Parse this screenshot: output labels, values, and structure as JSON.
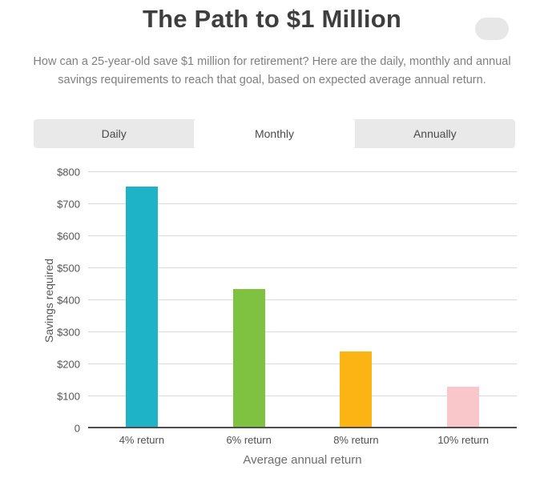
{
  "header": {
    "title": "The Path to $1 Million",
    "subtitle": "How can a 25-year-old save $1 million for retirement? Here are the daily, monthly and annual savings requirements to reach that goal, based on expected average annual return."
  },
  "tabs": {
    "items": [
      {
        "label": "Daily",
        "active": false
      },
      {
        "label": "Monthly",
        "active": true
      },
      {
        "label": "Annually",
        "active": false
      }
    ]
  },
  "chart_data": {
    "type": "bar",
    "title": "The Path to $1 Million",
    "categories": [
      "4% return",
      "6% return",
      "8% return",
      "10% return"
    ],
    "values": [
      755,
      435,
      240,
      130
    ],
    "colors": [
      "#1eb3c6",
      "#7fc241",
      "#fcb415",
      "#f9c6c9"
    ],
    "xlabel": "Average annual return",
    "ylabel": "Savings required",
    "ylim": [
      0,
      800
    ],
    "ytick_labels": [
      "0",
      "$100",
      "$200",
      "$300",
      "$400",
      "$500",
      "$600",
      "$700",
      "$800"
    ],
    "grid": true,
    "legend": false
  }
}
